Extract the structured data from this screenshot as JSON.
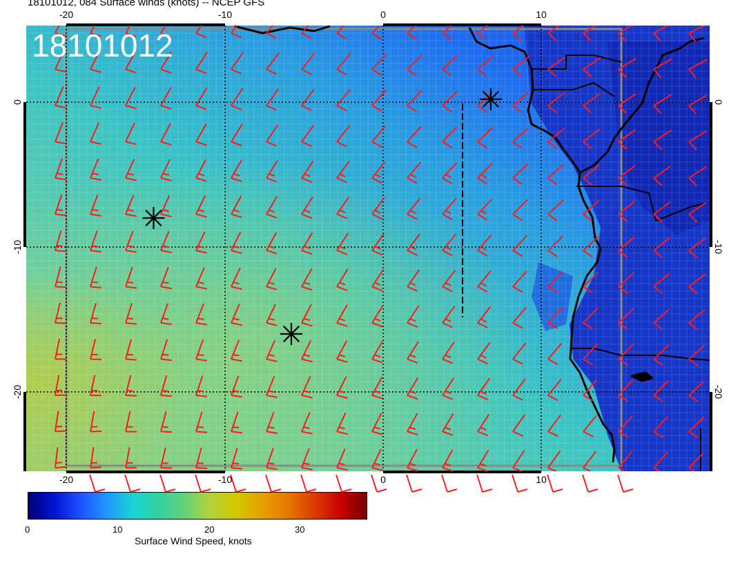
{
  "title": "18101012, 084 Surface winds (knots) -- NCEP GFS",
  "date_stamp": "18101012",
  "lon_ticks": [
    "-20",
    "-10",
    "0",
    "10"
  ],
  "lat_ticks": [
    "0",
    "-10",
    "-20"
  ],
  "colorbar": {
    "title": "Surface Wind Speed, knots",
    "ticks": [
      "0",
      "10",
      "20",
      "30"
    ],
    "range": [
      0,
      37
    ],
    "colors": [
      "#000078",
      "#0014d2",
      "#1e50ff",
      "#1e96ff",
      "#19d2d2",
      "#32d2a0",
      "#64d278",
      "#b4d23c",
      "#d2c800",
      "#e6a000",
      "#e67800",
      "#dc3c00",
      "#c80000",
      "#780000"
    ]
  },
  "colors": {
    "barb": "#ff1a1a",
    "coast": "#000000",
    "grid_dotted": "#000000",
    "box_outline": "#888888"
  },
  "markers": [
    {
      "name": "star-marker-west",
      "lon": -14.5,
      "lat": -8
    },
    {
      "name": "star-marker-central",
      "lon": -5.8,
      "lat": -16
    },
    {
      "name": "star-marker-north",
      "lon": 6.8,
      "lat": 0.2
    }
  ]
}
